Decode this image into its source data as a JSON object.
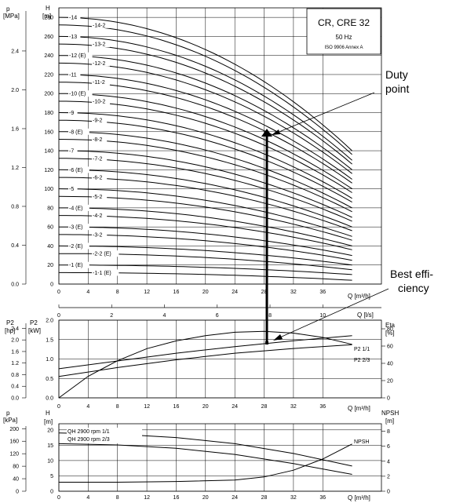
{
  "header": {
    "title": "CR, CRE 32",
    "frequency": "50 Hz",
    "standard": "ISO 9906 Annex A"
  },
  "annotations": {
    "duty_point": [
      "Duty",
      "point"
    ],
    "best_efficiency": [
      "Best effi-",
      "ciency"
    ]
  },
  "axes": {
    "p_top": "p",
    "p_top_unit": "[MPa]",
    "h_top": "H",
    "h_top_unit": "[m]",
    "q_m3h": "Q [m³/h]",
    "q_ls": "Q [l/s]",
    "p2_hp": "P2",
    "p2_hp_unit": "[hp]",
    "p2_kw": "P2",
    "p2_kw_unit": "[kW]",
    "eta": "Eta",
    "eta_unit": "[%]",
    "p_bot": "p",
    "p_bot_unit": "[kPa]",
    "h_bot": "H",
    "h_bot_unit": "[m]",
    "npsh": "NPSH",
    "npsh_unit": "[m]"
  },
  "chart_data": [
    {
      "type": "line",
      "title": "CR, CRE 32",
      "subtitle": "50 Hz · ISO 9906 Annex A",
      "xlabel": "Q [m³/h]",
      "ylabel": "H [m]",
      "xlim": [
        0,
        44
      ],
      "ylim": [
        0,
        290
      ],
      "x_ticks": [
        0,
        4,
        8,
        12,
        16,
        20,
        24,
        28,
        32,
        36
      ],
      "y_ticks": [
        0,
        20,
        40,
        60,
        80,
        100,
        120,
        140,
        160,
        180,
        200,
        220,
        240,
        260,
        280
      ],
      "secondary_y_ticks": [
        "0.0",
        "0.4",
        "0.8",
        "1.2",
        "1.6",
        "2.0",
        "2.4"
      ],
      "secondary_x_ticks": [
        0,
        2,
        4,
        6,
        8,
        10
      ],
      "grid": true,
      "series": [
        {
          "name": "-1-1 (E)",
          "shut_off_head": 12,
          "head_at_40": 4
        },
        {
          "name": "-1 (E)",
          "shut_off_head": 20,
          "head_at_40": 10
        },
        {
          "name": "-2-2 (E)",
          "shut_off_head": 32,
          "head_at_40": 15
        },
        {
          "name": "-2 (E)",
          "shut_off_head": 40,
          "head_at_40": 20
        },
        {
          "name": "-3-2",
          "shut_off_head": 52,
          "head_at_40": 25
        },
        {
          "name": "-3 (E)",
          "shut_off_head": 60,
          "head_at_40": 30
        },
        {
          "name": "-4-2",
          "shut_off_head": 72,
          "head_at_40": 36
        },
        {
          "name": "-4 (E)",
          "shut_off_head": 80,
          "head_at_40": 40
        },
        {
          "name": "-5-2",
          "shut_off_head": 92,
          "head_at_40": 46
        },
        {
          "name": "-5",
          "shut_off_head": 100,
          "head_at_40": 50
        },
        {
          "name": "-6-2",
          "shut_off_head": 112,
          "head_at_40": 56
        },
        {
          "name": "-6 (E)",
          "shut_off_head": 120,
          "head_at_40": 60
        },
        {
          "name": "-7-2",
          "shut_off_head": 132,
          "head_at_40": 66
        },
        {
          "name": "-7",
          "shut_off_head": 140,
          "head_at_40": 70
        },
        {
          "name": "-8-2",
          "shut_off_head": 152,
          "head_at_40": 76
        },
        {
          "name": "-8 (E)",
          "shut_off_head": 160,
          "head_at_40": 80
        },
        {
          "name": "-9-2",
          "shut_off_head": 172,
          "head_at_40": 86
        },
        {
          "name": "-9",
          "shut_off_head": 180,
          "head_at_40": 90
        },
        {
          "name": "-10-2",
          "shut_off_head": 192,
          "head_at_40": 96
        },
        {
          "name": "-10 (E)",
          "shut_off_head": 200,
          "head_at_40": 100
        },
        {
          "name": "-11-2",
          "shut_off_head": 212,
          "head_at_40": 106
        },
        {
          "name": "-11",
          "shut_off_head": 220,
          "head_at_40": 110
        },
        {
          "name": "-12-2",
          "shut_off_head": 232,
          "head_at_40": 116
        },
        {
          "name": "-12 (E)",
          "shut_off_head": 240,
          "head_at_40": 120
        },
        {
          "name": "-13-2",
          "shut_off_head": 252,
          "head_at_40": 126
        },
        {
          "name": "-13",
          "shut_off_head": 260,
          "head_at_40": 130
        },
        {
          "name": "-14-2",
          "shut_off_head": 272,
          "head_at_40": 136
        },
        {
          "name": "-14",
          "shut_off_head": 280,
          "head_at_40": 140
        }
      ],
      "duty_point": {
        "x": 28.5,
        "y": 162
      }
    },
    {
      "type": "line",
      "xlabel": "Q [m³/h]",
      "ylabel": "P2 [kW]",
      "xlim": [
        0,
        44
      ],
      "ylim": [
        0,
        2.0
      ],
      "x_ticks": [
        0,
        4,
        8,
        12,
        16,
        20,
        24,
        28,
        32,
        36
      ],
      "y_ticks": [
        "0.0",
        "0.5",
        "1.0",
        "1.5",
        "2.0"
      ],
      "hp_ticks": [
        "0.0",
        "0.4",
        "0.8",
        "1.2",
        "1.6",
        "2.0",
        "2.4"
      ],
      "eta_ticks": [
        0,
        20,
        40,
        60,
        80
      ],
      "grid": true,
      "series": [
        {
          "name": "P2 1/1",
          "x": [
            0,
            8,
            16,
            24,
            32,
            40
          ],
          "values": [
            0.75,
            0.95,
            1.15,
            1.32,
            1.47,
            1.6
          ]
        },
        {
          "name": "P2 2/3",
          "x": [
            0,
            8,
            16,
            24,
            32,
            40
          ],
          "values": [
            0.55,
            0.78,
            0.98,
            1.15,
            1.27,
            1.37
          ]
        },
        {
          "name": "Eta",
          "x": [
            0,
            4,
            8,
            12,
            16,
            20,
            24,
            28,
            32,
            36,
            40
          ],
          "values": [
            0,
            25,
            43,
            57,
            66,
            72,
            76,
            77,
            75,
            70,
            62
          ]
        }
      ],
      "best_efficiency": {
        "x": 28.5,
        "y": 77
      }
    },
    {
      "type": "line",
      "xlabel": "Q [m³/h]",
      "ylabel": "H [m]",
      "xlim": [
        0,
        44
      ],
      "ylim": [
        0,
        22
      ],
      "x_ticks": [
        0,
        4,
        8,
        12,
        16,
        20,
        24,
        28,
        32,
        36
      ],
      "y_ticks": [
        0,
        5,
        10,
        15,
        20
      ],
      "kpa_ticks": [
        0,
        40,
        80,
        120,
        160,
        200
      ],
      "npsh_ticks": [
        0,
        2,
        4,
        6,
        8
      ],
      "grid": true,
      "series": [
        {
          "name": "QH 2900 rpm 1/1",
          "x": [
            0,
            8,
            16,
            24,
            32,
            40
          ],
          "values": [
            19,
            18.6,
            17.5,
            15.5,
            12.3,
            8.2
          ]
        },
        {
          "name": "QH 2900 rpm 2/3",
          "x": [
            0,
            8,
            16,
            24,
            32,
            40
          ],
          "values": [
            15.5,
            15.1,
            14,
            12,
            9,
            5.5
          ]
        },
        {
          "name": "NPSH",
          "x": [
            0,
            8,
            16,
            24,
            28,
            32,
            36,
            40
          ],
          "values": [
            1.2,
            1.2,
            1.3,
            1.5,
            1.9,
            2.8,
            4.3,
            6.3
          ]
        }
      ]
    }
  ]
}
